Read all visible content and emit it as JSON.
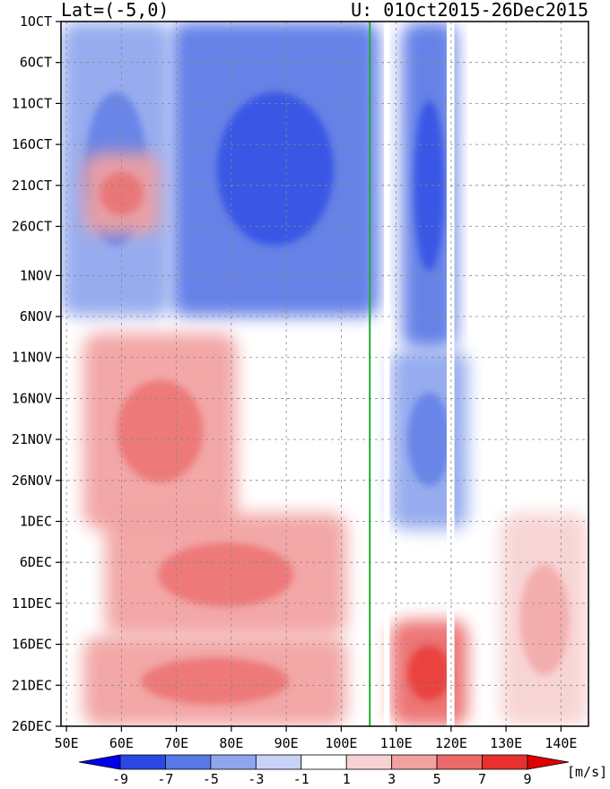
{
  "header": {
    "left": "Lat=(-5,0)",
    "right": "U: 01Oct2015-26Dec2015"
  },
  "chart_data": {
    "type": "heatmap",
    "variable": "U",
    "units": "[m/s]",
    "x_ticks": [
      {
        "value": 45,
        "label": "50E"
      },
      {
        "value": 55,
        "label": "60E"
      },
      {
        "value": 65,
        "label": "70E"
      },
      {
        "value": 75,
        "label": "80E"
      },
      {
        "value": 85,
        "label": "90E"
      },
      {
        "value": 95,
        "label": "100E"
      },
      {
        "value": 105,
        "label": "110E"
      },
      {
        "value": 115,
        "label": "120E"
      },
      {
        "value": 125,
        "label": "130E"
      },
      {
        "value": 135,
        "label": "140E"
      }
    ],
    "y_ticks": [
      {
        "day": 0,
        "label": "1OCT"
      },
      {
        "day": 5,
        "label": "6OCT"
      },
      {
        "day": 10,
        "label": "11OCT"
      },
      {
        "day": 15,
        "label": "16OCT"
      },
      {
        "day": 20,
        "label": "21OCT"
      },
      {
        "day": 25,
        "label": "26OCT"
      },
      {
        "day": 31,
        "label": "1NOV"
      },
      {
        "day": 36,
        "label": "6NOV"
      },
      {
        "day": 41,
        "label": "11NOV"
      },
      {
        "day": 46,
        "label": "16NOV"
      },
      {
        "day": 51,
        "label": "21NOV"
      },
      {
        "day": 56,
        "label": "26NOV"
      },
      {
        "day": 61,
        "label": "1DEC"
      },
      {
        "day": 66,
        "label": "6DEC"
      },
      {
        "day": 71,
        "label": "11DEC"
      },
      {
        "day": 76,
        "label": "16DEC"
      },
      {
        "day": 81,
        "label": "21DEC"
      },
      {
        "day": 86,
        "label": "26DEC"
      }
    ],
    "xlim": [
      44,
      140
    ],
    "ylim_days": [
      0,
      86
    ],
    "marker_line_lon": 100.2,
    "marker_line_color": "#22aa33",
    "colorbar": {
      "levels": [
        "-9",
        "-7",
        "-5",
        "-3",
        "-1",
        "1",
        "3",
        "5",
        "7",
        "9"
      ],
      "colors": [
        "#0000ee",
        "#2c48e4",
        "#5a78e6",
        "#8ea6ee",
        "#c8d2f6",
        "#ffffff",
        "#f8d2d2",
        "#f2a0a0",
        "#ec6a6a",
        "#e8302e",
        "#e00000"
      ]
    },
    "features": [
      {
        "lon": [
          64,
          102
        ],
        "days": [
          0,
          36
        ],
        "value": -5
      },
      {
        "lon": [
          44,
          64
        ],
        "days": [
          0,
          36
        ],
        "value": -3
      },
      {
        "lon": [
          48,
          62
        ],
        "days": [
          16,
          26
        ],
        "value": 5
      },
      {
        "lon": [
          106,
          116
        ],
        "days": [
          0,
          40
        ],
        "value": -5
      },
      {
        "lon": [
          104,
          118
        ],
        "days": [
          40,
          62
        ],
        "value": -3
      },
      {
        "lon": [
          48,
          76
        ],
        "days": [
          38,
          62
        ],
        "value": 5
      },
      {
        "lon": [
          52,
          96
        ],
        "days": [
          60,
          75
        ],
        "value": 5
      },
      {
        "lon": [
          48,
          96
        ],
        "days": [
          75,
          86
        ],
        "value": 5
      },
      {
        "lon": [
          104,
          118
        ],
        "days": [
          73,
          86
        ],
        "value": 7
      },
      {
        "lon": [
          124,
          140
        ],
        "days": [
          60,
          86
        ],
        "value": 3
      }
    ]
  }
}
